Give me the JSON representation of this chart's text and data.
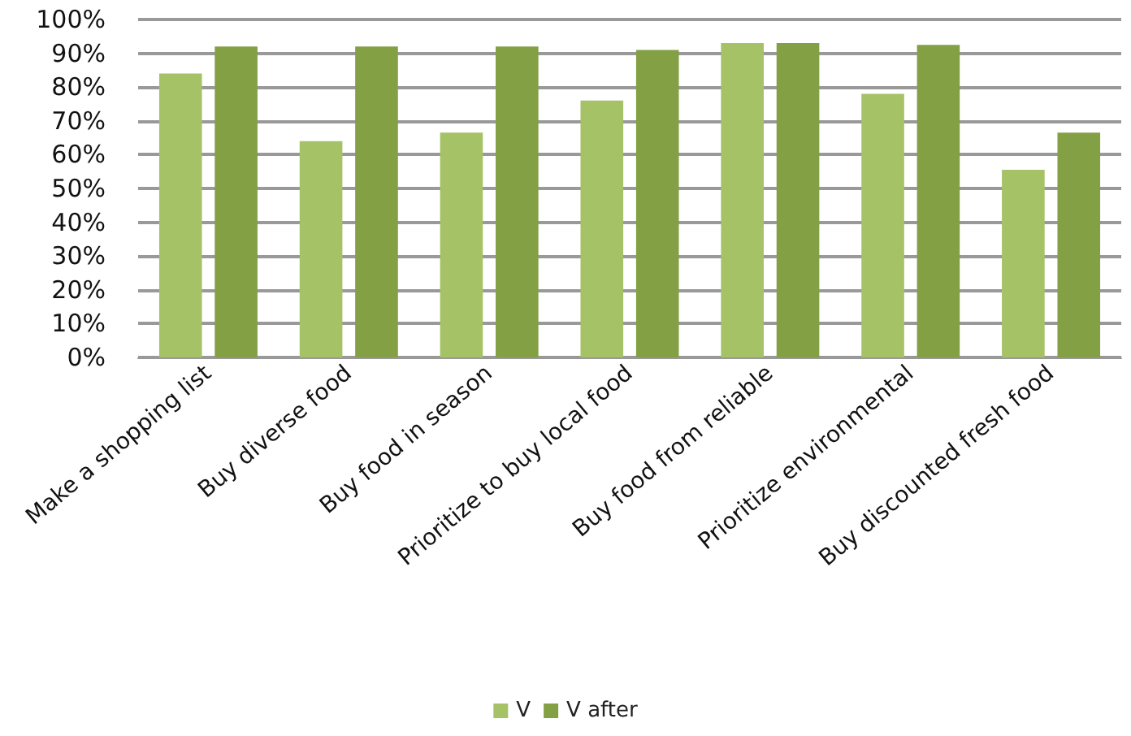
{
  "chart_data": {
    "type": "bar",
    "categories": [
      "Make a shopping list",
      "Buy diverse food",
      "Buy food in season",
      "Prioritize to buy local food",
      "Buy food from reliable",
      "Prioritize environmental",
      "Buy discounted fresh food"
    ],
    "series": [
      {
        "name": "V",
        "color": "#a5c266",
        "values": [
          84,
          64,
          66.5,
          76,
          93,
          78,
          55.5
        ]
      },
      {
        "name": "V after",
        "color": "#83a045",
        "values": [
          92,
          92,
          92,
          91,
          93,
          92.5,
          66.5
        ]
      }
    ],
    "ylim": [
      0,
      100
    ],
    "yticks": [
      {
        "value": 0,
        "label": "0%"
      },
      {
        "value": 10,
        "label": "10%"
      },
      {
        "value": 20,
        "label": "20%"
      },
      {
        "value": 30,
        "label": "30%"
      },
      {
        "value": 40,
        "label": "40%"
      },
      {
        "value": 50,
        "label": "50%"
      },
      {
        "value": 60,
        "label": "60%"
      },
      {
        "value": 70,
        "label": "70%"
      },
      {
        "value": 80,
        "label": "80%"
      },
      {
        "value": 90,
        "label": "90%"
      },
      {
        "value": 100,
        "label": "100%"
      }
    ],
    "grid": "y",
    "legend": "bottom"
  }
}
